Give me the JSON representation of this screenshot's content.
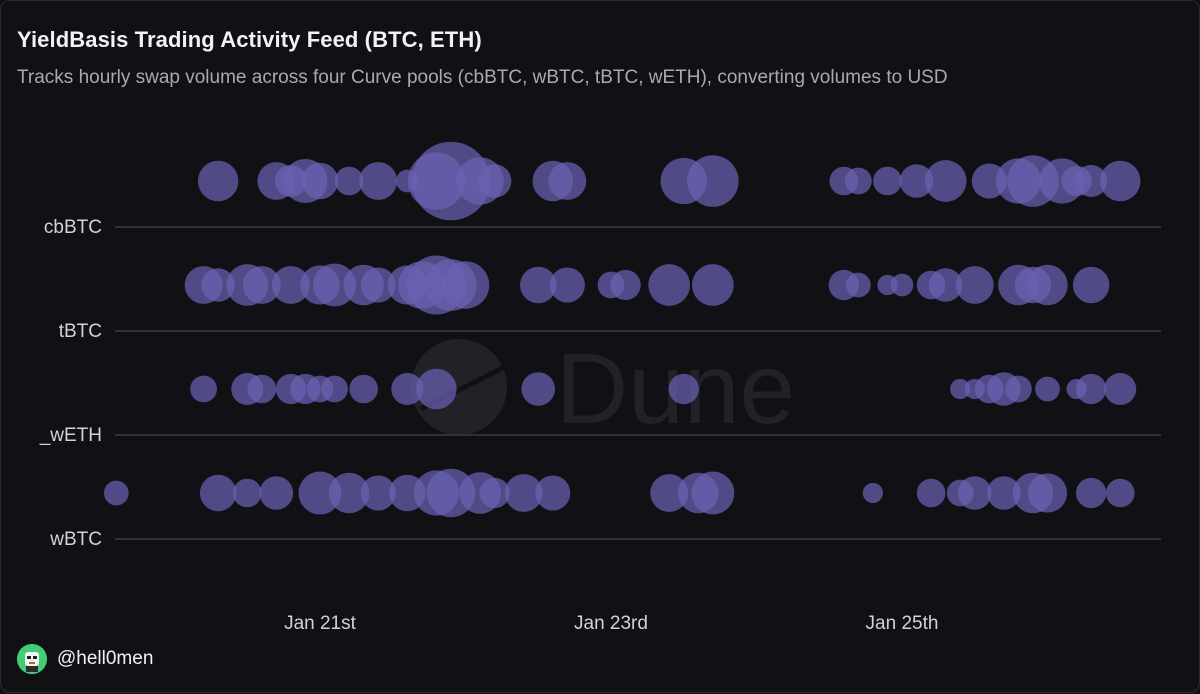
{
  "header": {
    "title": "YieldBasis Trading Activity Feed (BTC, ETH)",
    "subtitle": "Tracks hourly swap volume across four Curve pools (cbBTC, wBTC, tBTC, wETH), converting volumes to USD"
  },
  "footer": {
    "username": "@hell0men"
  },
  "watermark": {
    "text": "Dune"
  },
  "colors": {
    "background": "#111014",
    "bubble": "#6a63b3",
    "gridline": "#3a3a42",
    "axis_text": "#d2d2d8"
  },
  "chart_data": {
    "type": "scatter",
    "encoding": "bubble",
    "title": "",
    "x": {
      "ticks": [
        "Jan 21st",
        "Jan 23rd",
        "Jan 25th"
      ],
      "tick_days": [
        21,
        23,
        25
      ],
      "range_days": [
        19.3,
        26.6
      ]
    },
    "y": {
      "categories": [
        "cbBTC",
        "tBTC",
        "_wETH",
        "wBTC"
      ]
    },
    "grid": true,
    "series": [
      {
        "pool": "cbBTC",
        "points": [
          [
            20.3,
            1.6
          ],
          [
            20.7,
            1.4
          ],
          [
            20.8,
            1.0
          ],
          [
            20.9,
            1.9
          ],
          [
            21.0,
            1.3
          ],
          [
            21.2,
            0.8
          ],
          [
            21.4,
            1.4
          ],
          [
            21.6,
            0.5
          ],
          [
            21.8,
            3.2
          ],
          [
            21.9,
            6.0
          ],
          [
            22.1,
            2.2
          ],
          [
            22.2,
            1.1
          ],
          [
            22.6,
            1.6
          ],
          [
            22.7,
            1.4
          ],
          [
            23.5,
            2.1
          ],
          [
            23.7,
            2.6
          ],
          [
            24.6,
            0.8
          ],
          [
            24.7,
            0.7
          ],
          [
            24.9,
            0.8
          ],
          [
            25.1,
            1.1
          ],
          [
            25.3,
            1.7
          ],
          [
            25.6,
            1.2
          ],
          [
            25.8,
            2.0
          ],
          [
            25.9,
            2.6
          ],
          [
            26.1,
            2.0
          ],
          [
            26.2,
            0.9
          ],
          [
            26.3,
            1.0
          ],
          [
            26.5,
            1.6
          ]
        ]
      },
      {
        "pool": "tBTC",
        "points": [
          [
            20.2,
            1.4
          ],
          [
            20.3,
            1.1
          ],
          [
            20.5,
            1.7
          ],
          [
            20.6,
            1.4
          ],
          [
            20.8,
            1.4
          ],
          [
            21.0,
            1.5
          ],
          [
            21.1,
            1.8
          ],
          [
            21.3,
            1.6
          ],
          [
            21.4,
            1.2
          ],
          [
            21.6,
            1.5
          ],
          [
            21.7,
            2.2
          ],
          [
            21.8,
            3.4
          ],
          [
            21.9,
            2.6
          ],
          [
            22.0,
            2.2
          ],
          [
            22.5,
            1.3
          ],
          [
            22.7,
            1.2
          ],
          [
            23.0,
            0.7
          ],
          [
            23.1,
            0.9
          ],
          [
            23.4,
            1.7
          ],
          [
            23.7,
            1.7
          ],
          [
            24.6,
            0.9
          ],
          [
            24.7,
            0.6
          ],
          [
            24.9,
            0.4
          ],
          [
            25.0,
            0.5
          ],
          [
            25.2,
            0.8
          ],
          [
            25.3,
            1.1
          ],
          [
            25.5,
            1.4
          ],
          [
            25.8,
            1.6
          ],
          [
            25.9,
            1.3
          ],
          [
            26.0,
            1.6
          ],
          [
            26.3,
            1.3
          ]
        ]
      },
      {
        "pool": "_wETH",
        "points": [
          [
            20.2,
            0.7
          ],
          [
            20.5,
            1.0
          ],
          [
            20.6,
            0.8
          ],
          [
            20.8,
            0.9
          ],
          [
            20.9,
            0.9
          ],
          [
            21.0,
            0.7
          ],
          [
            21.1,
            0.7
          ],
          [
            21.3,
            0.8
          ],
          [
            21.6,
            1.0
          ],
          [
            21.8,
            1.6
          ],
          [
            22.5,
            1.1
          ],
          [
            23.5,
            0.9
          ],
          [
            25.4,
            0.4
          ],
          [
            25.5,
            0.4
          ],
          [
            25.6,
            0.8
          ],
          [
            25.7,
            1.1
          ],
          [
            25.8,
            0.7
          ],
          [
            26.0,
            0.6
          ],
          [
            26.2,
            0.4
          ],
          [
            26.3,
            0.9
          ],
          [
            26.5,
            1.0
          ]
        ]
      },
      {
        "pool": "wBTC",
        "points": [
          [
            19.6,
            0.6
          ],
          [
            20.3,
            1.3
          ],
          [
            20.5,
            0.8
          ],
          [
            20.7,
            1.1
          ],
          [
            21.0,
            1.8
          ],
          [
            21.2,
            1.6
          ],
          [
            21.4,
            1.2
          ],
          [
            21.6,
            1.3
          ],
          [
            21.8,
            2.0
          ],
          [
            21.9,
            2.3
          ],
          [
            22.1,
            1.7
          ],
          [
            22.2,
            0.9
          ],
          [
            22.4,
            1.4
          ],
          [
            22.6,
            1.2
          ],
          [
            23.4,
            1.4
          ],
          [
            23.6,
            1.6
          ],
          [
            23.7,
            1.8
          ],
          [
            24.8,
            0.4
          ],
          [
            25.2,
            0.8
          ],
          [
            25.4,
            0.7
          ],
          [
            25.5,
            1.1
          ],
          [
            25.7,
            1.1
          ],
          [
            25.9,
            1.6
          ],
          [
            26.0,
            1.5
          ],
          [
            26.3,
            0.9
          ],
          [
            26.5,
            0.8
          ]
        ]
      }
    ]
  }
}
